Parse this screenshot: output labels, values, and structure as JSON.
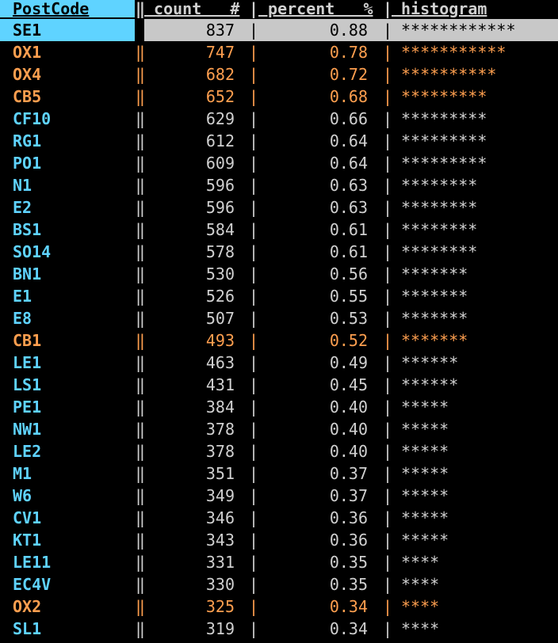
{
  "headers": {
    "postcode": "PostCode",
    "count": " count   #",
    "percent": " percent   %",
    "histogram": " histogram"
  },
  "separators": {
    "double": "‖",
    "single": "|"
  },
  "colors": {
    "code_normal": "#5fd3ff",
    "text_normal": "#d0d0d0",
    "highlight": "#ff9f4f",
    "selected_text": "#000000",
    "header_text_left": "#000000",
    "header_text": "#d0d0d0"
  },
  "rows": [
    {
      "code": "SE1",
      "count": "837",
      "percent": "0.88",
      "hist": "************",
      "style": "selected"
    },
    {
      "code": "OX1",
      "count": "747",
      "percent": "0.78",
      "hist": "***********",
      "style": "highlight"
    },
    {
      "code": "OX4",
      "count": "682",
      "percent": "0.72",
      "hist": "**********",
      "style": "highlight"
    },
    {
      "code": "CB5",
      "count": "652",
      "percent": "0.68",
      "hist": "*********",
      "style": "highlight"
    },
    {
      "code": "CF10",
      "count": "629",
      "percent": "0.66",
      "hist": "*********",
      "style": "normal"
    },
    {
      "code": "RG1",
      "count": "612",
      "percent": "0.64",
      "hist": "*********",
      "style": "normal"
    },
    {
      "code": "PO1",
      "count": "609",
      "percent": "0.64",
      "hist": "*********",
      "style": "normal"
    },
    {
      "code": "N1",
      "count": "596",
      "percent": "0.63",
      "hist": "********",
      "style": "normal"
    },
    {
      "code": "E2",
      "count": "596",
      "percent": "0.63",
      "hist": "********",
      "style": "normal"
    },
    {
      "code": "BS1",
      "count": "584",
      "percent": "0.61",
      "hist": "********",
      "style": "normal"
    },
    {
      "code": "SO14",
      "count": "578",
      "percent": "0.61",
      "hist": "********",
      "style": "normal"
    },
    {
      "code": "BN1",
      "count": "530",
      "percent": "0.56",
      "hist": "*******",
      "style": "normal"
    },
    {
      "code": "E1",
      "count": "526",
      "percent": "0.55",
      "hist": "*******",
      "style": "normal"
    },
    {
      "code": "E8",
      "count": "507",
      "percent": "0.53",
      "hist": "*******",
      "style": "normal"
    },
    {
      "code": "CB1",
      "count": "493",
      "percent": "0.52",
      "hist": "*******",
      "style": "highlight"
    },
    {
      "code": "LE1",
      "count": "463",
      "percent": "0.49",
      "hist": "******",
      "style": "normal"
    },
    {
      "code": "LS1",
      "count": "431",
      "percent": "0.45",
      "hist": "******",
      "style": "normal"
    },
    {
      "code": "PE1",
      "count": "384",
      "percent": "0.40",
      "hist": "*****",
      "style": "normal"
    },
    {
      "code": "NW1",
      "count": "378",
      "percent": "0.40",
      "hist": "*****",
      "style": "normal"
    },
    {
      "code": "LE2",
      "count": "378",
      "percent": "0.40",
      "hist": "*****",
      "style": "normal"
    },
    {
      "code": "M1",
      "count": "351",
      "percent": "0.37",
      "hist": "*****",
      "style": "normal"
    },
    {
      "code": "W6",
      "count": "349",
      "percent": "0.37",
      "hist": "*****",
      "style": "normal"
    },
    {
      "code": "CV1",
      "count": "346",
      "percent": "0.36",
      "hist": "*****",
      "style": "normal"
    },
    {
      "code": "KT1",
      "count": "343",
      "percent": "0.36",
      "hist": "*****",
      "style": "normal"
    },
    {
      "code": "LE11",
      "count": "331",
      "percent": "0.35",
      "hist": "****",
      "style": "normal"
    },
    {
      "code": "EC4V",
      "count": "330",
      "percent": "0.35",
      "hist": "****",
      "style": "normal"
    },
    {
      "code": "OX2",
      "count": "325",
      "percent": "0.34",
      "hist": "****",
      "style": "highlight"
    },
    {
      "code": "SL1",
      "count": "319",
      "percent": "0.34",
      "hist": "****",
      "style": "normal"
    }
  ]
}
